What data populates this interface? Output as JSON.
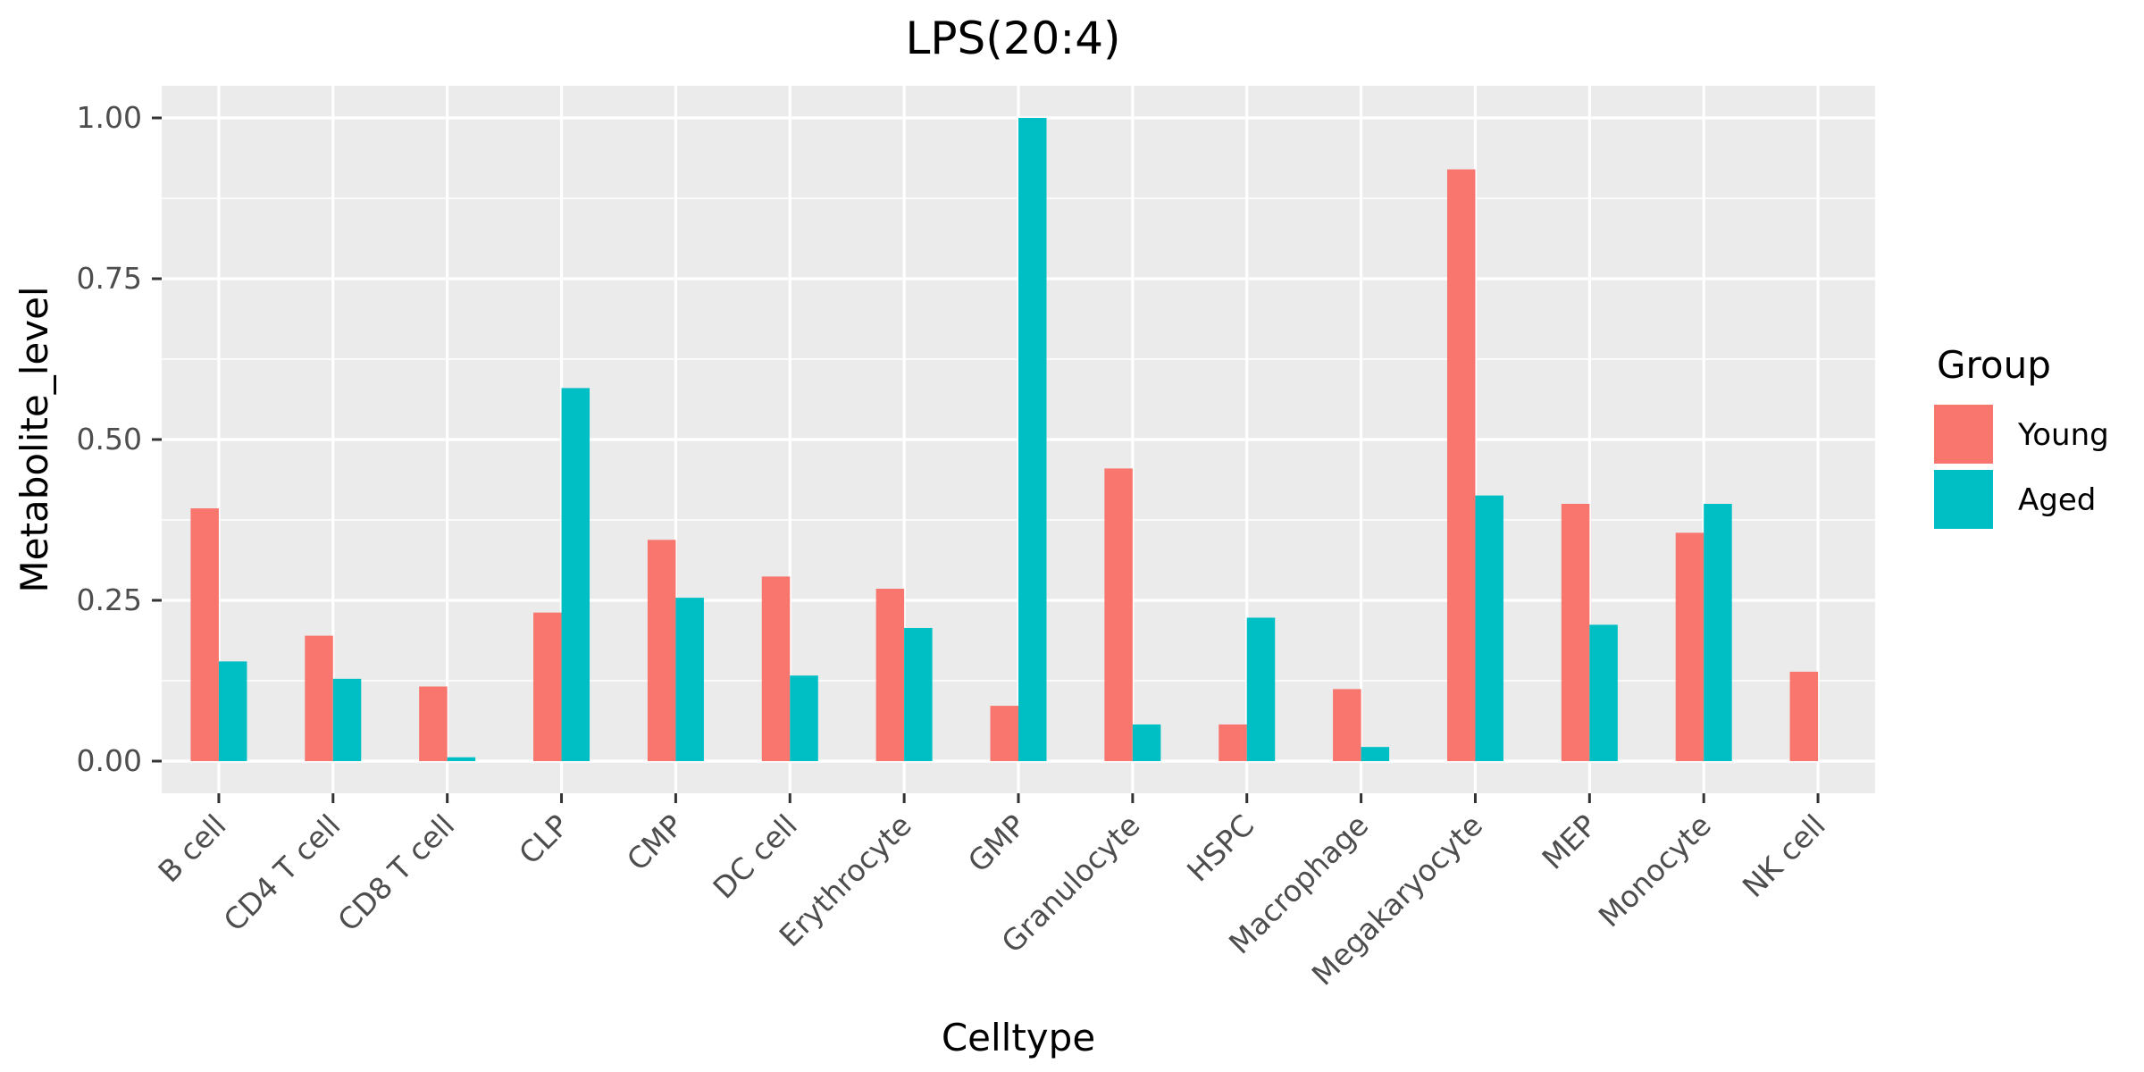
{
  "chart_data": {
    "type": "bar",
    "title": "LPS(20:4)",
    "xlabel": "Celltype",
    "ylabel": "Metabolite_level",
    "ylim": [
      -0.05,
      1.05
    ],
    "yticks": [
      0.0,
      0.25,
      0.5,
      0.75,
      1.0
    ],
    "ytick_labels": [
      "0.00",
      "0.25",
      "0.50",
      "0.75",
      "1.00"
    ],
    "categories": [
      "B cell",
      "CD4 T cell",
      "CD8 T cell",
      "CLP",
      "CMP",
      "DC cell",
      "Erythrocyte",
      "GMP",
      "Granulocyte",
      "HSPC",
      "Macrophage",
      "Megakaryocyte",
      "MEP",
      "Monocyte",
      "NK cell"
    ],
    "series": [
      {
        "name": "Young",
        "color": "#F8766D",
        "values": [
          0.393,
          0.195,
          0.116,
          0.231,
          0.344,
          0.287,
          0.268,
          0.086,
          0.455,
          0.057,
          0.112,
          0.92,
          0.4,
          0.355,
          0.139
        ]
      },
      {
        "name": "Aged",
        "color": "#00BFC4",
        "values": [
          0.155,
          0.128,
          0.006,
          0.58,
          0.254,
          0.133,
          0.207,
          1.0,
          0.057,
          0.223,
          0.022,
          0.413,
          0.212,
          0.4,
          null
        ]
      }
    ],
    "legend": {
      "title": "Group",
      "position": "right"
    },
    "grid": true,
    "panel_background": "#EBEBEB",
    "grid_color": "#FFFFFF"
  }
}
